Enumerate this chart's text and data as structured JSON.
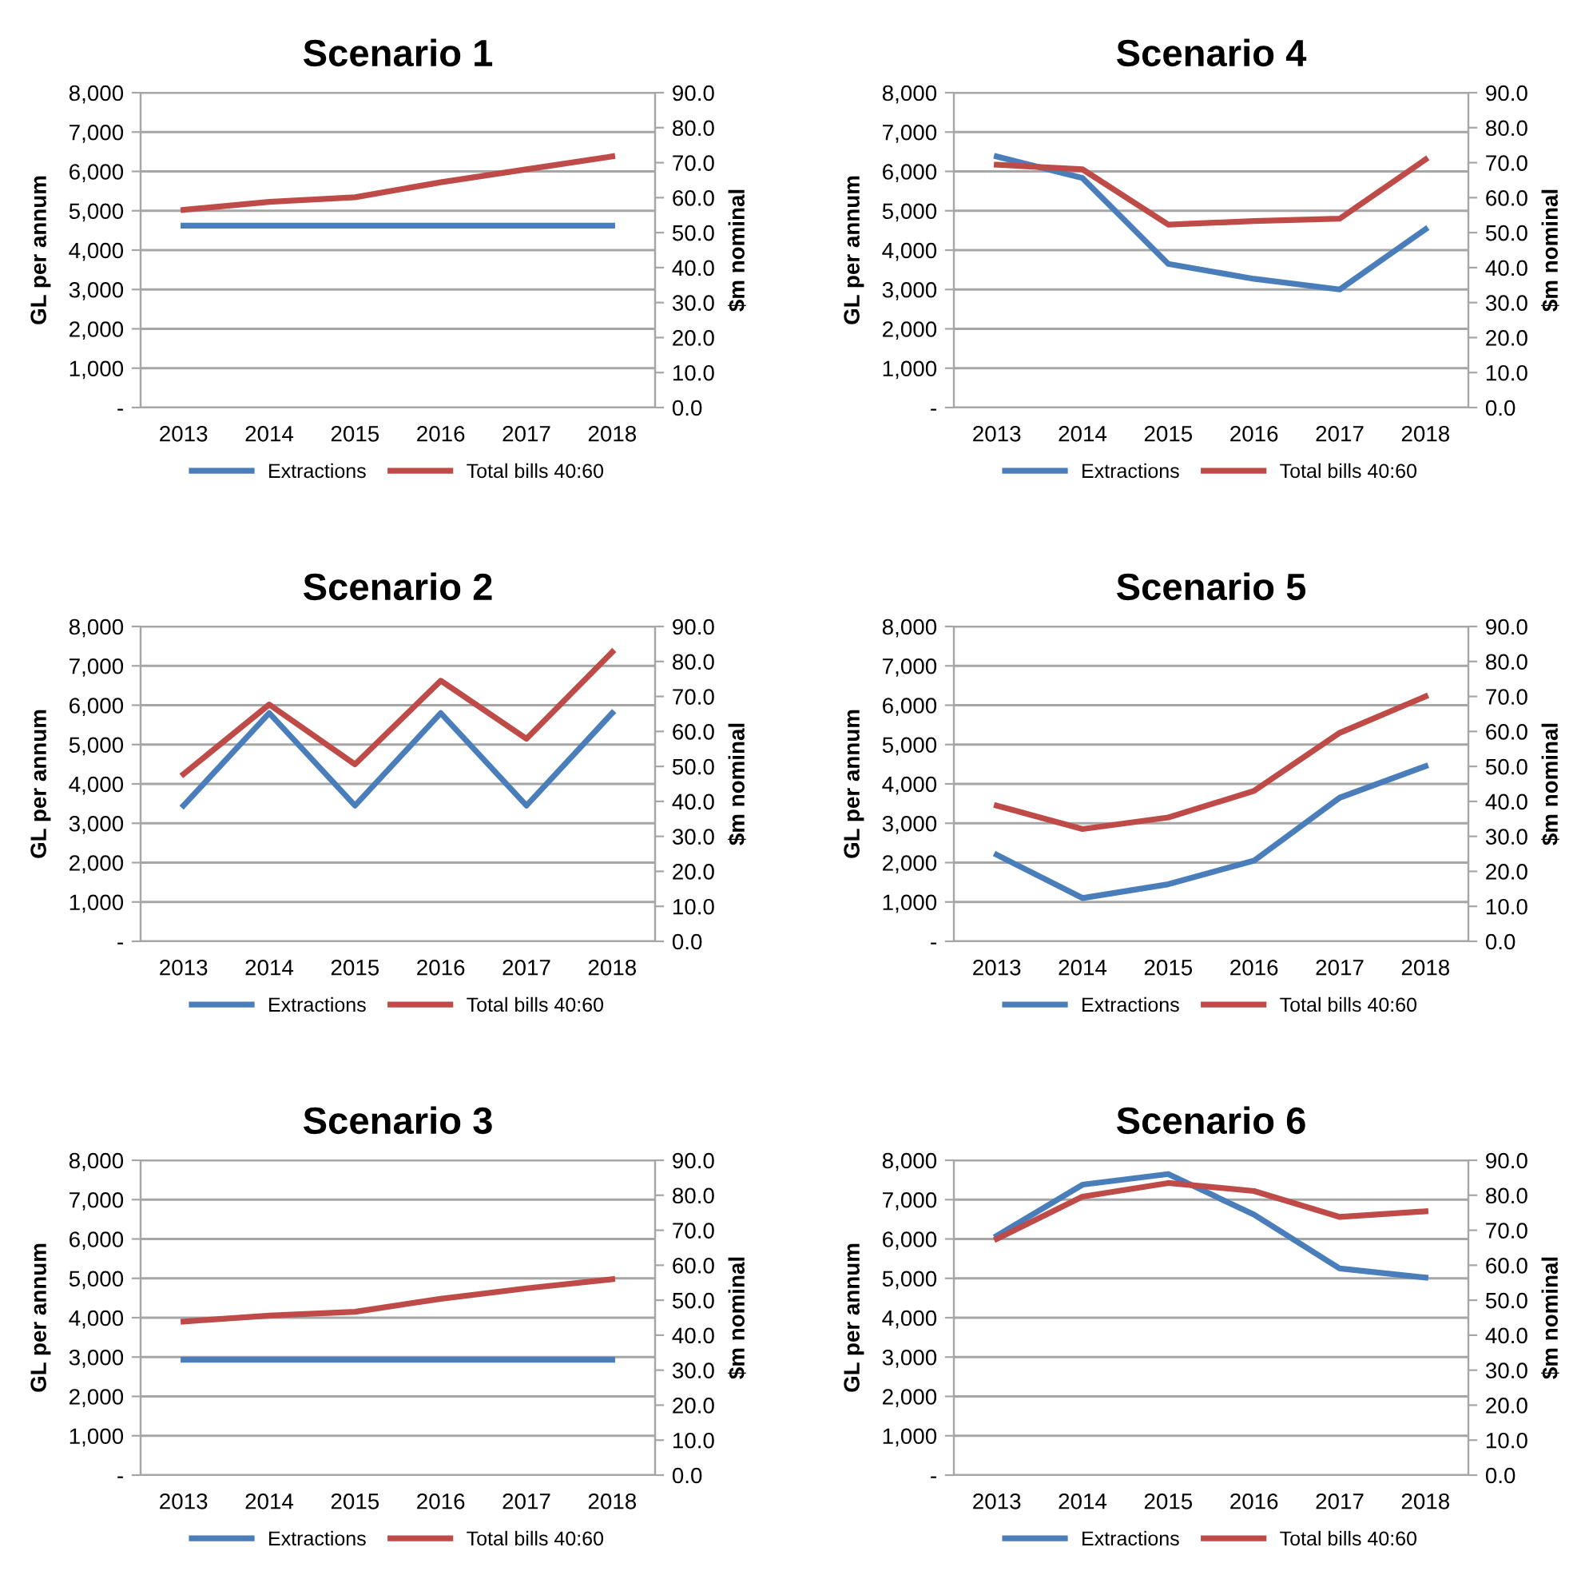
{
  "chart_data": [
    {
      "type": "line",
      "title": "Scenario 1",
      "ylabel": "GL per annum",
      "y2label": "$m nominal",
      "categories": [
        "2013",
        "2014",
        "2015",
        "2016",
        "2017",
        "2018"
      ],
      "series": [
        {
          "name": "Extractions",
          "color": "#4a7ebb",
          "values": [
            4620,
            4620,
            4620,
            4620,
            4620,
            4620
          ]
        },
        {
          "name": "Total bills 40:60",
          "color": "#be4b48",
          "axis": "y2",
          "values": [
            56.5,
            58.8,
            60.1,
            64.4,
            68.1,
            71.8
          ]
        }
      ],
      "ylim": [
        0,
        8000
      ],
      "yticks": [
        {
          "value": 0,
          "label": "-"
        },
        {
          "value": 1000,
          "label": "1,000"
        },
        {
          "value": 2000,
          "label": "2,000"
        },
        {
          "value": 3000,
          "label": "3,000"
        },
        {
          "value": 4000,
          "label": "4,000"
        },
        {
          "value": 5000,
          "label": "5,000"
        },
        {
          "value": 6000,
          "label": "6,000"
        },
        {
          "value": 7000,
          "label": "7,000"
        },
        {
          "value": 8000,
          "label": "8,000"
        }
      ],
      "y2lim": [
        0,
        90
      ],
      "y2ticks": [
        {
          "value": 0,
          "label": "0.0"
        },
        {
          "value": 10,
          "label": "10.0"
        },
        {
          "value": 20,
          "label": "20.0"
        },
        {
          "value": 30,
          "label": "30.0"
        },
        {
          "value": 40,
          "label": "40.0"
        },
        {
          "value": 50,
          "label": "50.0"
        },
        {
          "value": 60,
          "label": "60.0"
        },
        {
          "value": 70,
          "label": "70.0"
        },
        {
          "value": 80,
          "label": "80.0"
        },
        {
          "value": 90,
          "label": "90.0"
        }
      ],
      "grid": "y",
      "legend": "bottom"
    },
    {
      "type": "line",
      "title": "Scenario 4",
      "ylabel": "GL per annum",
      "y2label": "$m nominal",
      "categories": [
        "2013",
        "2014",
        "2015",
        "2016",
        "2017",
        "2018"
      ],
      "series": [
        {
          "name": "Extractions",
          "color": "#4a7ebb",
          "values": [
            6380,
            5830,
            3650,
            3270,
            3000,
            4530
          ]
        },
        {
          "name": "Total bills 40:60",
          "color": "#be4b48",
          "axis": "y2",
          "values": [
            69.4,
            68.1,
            52.3,
            53.3,
            54.0,
            70.9
          ]
        }
      ],
      "ylim": [
        0,
        8000
      ],
      "yticks": [
        {
          "value": 0,
          "label": "-"
        },
        {
          "value": 1000,
          "label": "1,000"
        },
        {
          "value": 2000,
          "label": "2,000"
        },
        {
          "value": 3000,
          "label": "3,000"
        },
        {
          "value": 4000,
          "label": "4,000"
        },
        {
          "value": 5000,
          "label": "5,000"
        },
        {
          "value": 6000,
          "label": "6,000"
        },
        {
          "value": 7000,
          "label": "7,000"
        },
        {
          "value": 8000,
          "label": "8,000"
        }
      ],
      "y2lim": [
        0,
        90
      ],
      "y2ticks": [
        {
          "value": 0,
          "label": "0.0"
        },
        {
          "value": 10,
          "label": "10.0"
        },
        {
          "value": 20,
          "label": "20.0"
        },
        {
          "value": 30,
          "label": "30.0"
        },
        {
          "value": 40,
          "label": "40.0"
        },
        {
          "value": 50,
          "label": "50.0"
        },
        {
          "value": 60,
          "label": "60.0"
        },
        {
          "value": 70,
          "label": "70.0"
        },
        {
          "value": 80,
          "label": "80.0"
        },
        {
          "value": 90,
          "label": "90.0"
        }
      ],
      "grid": "y",
      "legend": "bottom"
    },
    {
      "type": "line",
      "title": "Scenario 2",
      "ylabel": "GL per annum",
      "y2label": "$m nominal",
      "categories": [
        "2013",
        "2014",
        "2015",
        "2016",
        "2017",
        "2018"
      ],
      "series": [
        {
          "name": "Extractions",
          "color": "#4a7ebb",
          "values": [
            3450,
            5800,
            3450,
            5800,
            3450,
            5800
          ]
        },
        {
          "name": "Total bills 40:60",
          "color": "#be4b48",
          "axis": "y2",
          "values": [
            47.8,
            67.7,
            50.6,
            74.5,
            57.9,
            82.7
          ]
        }
      ],
      "ylim": [
        0,
        8000
      ],
      "yticks": [
        {
          "value": 0,
          "label": "-"
        },
        {
          "value": 1000,
          "label": "1,000"
        },
        {
          "value": 2000,
          "label": "2,000"
        },
        {
          "value": 3000,
          "label": "3,000"
        },
        {
          "value": 4000,
          "label": "4,000"
        },
        {
          "value": 5000,
          "label": "5,000"
        },
        {
          "value": 6000,
          "label": "6,000"
        },
        {
          "value": 7000,
          "label": "7,000"
        },
        {
          "value": 8000,
          "label": "8,000"
        }
      ],
      "y2lim": [
        0,
        90
      ],
      "y2ticks": [
        {
          "value": 0,
          "label": "0.0"
        },
        {
          "value": 10,
          "label": "10.0"
        },
        {
          "value": 20,
          "label": "20.0"
        },
        {
          "value": 30,
          "label": "30.0"
        },
        {
          "value": 40,
          "label": "40.0"
        },
        {
          "value": 50,
          "label": "50.0"
        },
        {
          "value": 60,
          "label": "60.0"
        },
        {
          "value": 70,
          "label": "70.0"
        },
        {
          "value": 80,
          "label": "80.0"
        },
        {
          "value": 90,
          "label": "90.0"
        }
      ],
      "grid": "y",
      "legend": "bottom"
    },
    {
      "type": "line",
      "title": "Scenario 5",
      "ylabel": "GL per annum",
      "y2label": "$m nominal",
      "categories": [
        "2013",
        "2014",
        "2015",
        "2016",
        "2017",
        "2018"
      ],
      "series": [
        {
          "name": "Extractions",
          "color": "#4a7ebb",
          "values": [
            2200,
            1100,
            1450,
            2050,
            3650,
            4450
          ]
        },
        {
          "name": "Total bills 40:60",
          "color": "#be4b48",
          "axis": "y2",
          "values": [
            38.8,
            32.1,
            35.4,
            43.0,
            59.6,
            70.0
          ]
        }
      ],
      "ylim": [
        0,
        8000
      ],
      "yticks": [
        {
          "value": 0,
          "label": "-"
        },
        {
          "value": 1000,
          "label": "1,000"
        },
        {
          "value": 2000,
          "label": "2,000"
        },
        {
          "value": 3000,
          "label": "3,000"
        },
        {
          "value": 4000,
          "label": "4,000"
        },
        {
          "value": 5000,
          "label": "5,000"
        },
        {
          "value": 6000,
          "label": "6,000"
        },
        {
          "value": 7000,
          "label": "7,000"
        },
        {
          "value": 8000,
          "label": "8,000"
        }
      ],
      "y2lim": [
        0,
        90
      ],
      "y2ticks": [
        {
          "value": 0,
          "label": "0.0"
        },
        {
          "value": 10,
          "label": "10.0"
        },
        {
          "value": 20,
          "label": "20.0"
        },
        {
          "value": 30,
          "label": "30.0"
        },
        {
          "value": 40,
          "label": "40.0"
        },
        {
          "value": 50,
          "label": "50.0"
        },
        {
          "value": 60,
          "label": "60.0"
        },
        {
          "value": 70,
          "label": "70.0"
        },
        {
          "value": 80,
          "label": "80.0"
        },
        {
          "value": 90,
          "label": "90.0"
        }
      ],
      "grid": "y",
      "legend": "bottom"
    },
    {
      "type": "line",
      "title": "Scenario 3",
      "ylabel": "GL per annum",
      "y2label": "$m nominal",
      "categories": [
        "2013",
        "2014",
        "2015",
        "2016",
        "2017",
        "2018"
      ],
      "series": [
        {
          "name": "Extractions",
          "color": "#4a7ebb",
          "values": [
            2930,
            2930,
            2930,
            2930,
            2930,
            2930
          ]
        },
        {
          "name": "Total bills 40:60",
          "color": "#be4b48",
          "axis": "y2",
          "values": [
            43.9,
            45.6,
            46.7,
            50.4,
            53.4,
            56.0
          ]
        }
      ],
      "ylim": [
        0,
        8000
      ],
      "yticks": [
        {
          "value": 0,
          "label": "-"
        },
        {
          "value": 1000,
          "label": "1,000"
        },
        {
          "value": 2000,
          "label": "2,000"
        },
        {
          "value": 3000,
          "label": "3,000"
        },
        {
          "value": 4000,
          "label": "4,000"
        },
        {
          "value": 5000,
          "label": "5,000"
        },
        {
          "value": 6000,
          "label": "6,000"
        },
        {
          "value": 7000,
          "label": "7,000"
        },
        {
          "value": 8000,
          "label": "8,000"
        }
      ],
      "y2lim": [
        0,
        90
      ],
      "y2ticks": [
        {
          "value": 0,
          "label": "0.0"
        },
        {
          "value": 10,
          "label": "10.0"
        },
        {
          "value": 20,
          "label": "20.0"
        },
        {
          "value": 30,
          "label": "30.0"
        },
        {
          "value": 40,
          "label": "40.0"
        },
        {
          "value": 50,
          "label": "50.0"
        },
        {
          "value": 60,
          "label": "60.0"
        },
        {
          "value": 70,
          "label": "70.0"
        },
        {
          "value": 80,
          "label": "80.0"
        },
        {
          "value": 90,
          "label": "90.0"
        }
      ],
      "grid": "y",
      "legend": "bottom"
    },
    {
      "type": "line",
      "title": "Scenario 6",
      "ylabel": "GL per annum",
      "y2label": "$m nominal",
      "categories": [
        "2013",
        "2014",
        "2015",
        "2016",
        "2017",
        "2018"
      ],
      "series": [
        {
          "name": "Extractions",
          "color": "#4a7ebb",
          "values": [
            6080,
            7380,
            7650,
            6620,
            5250,
            5020
          ]
        },
        {
          "name": "Total bills 40:60",
          "color": "#be4b48",
          "axis": "y2",
          "values": [
            67.5,
            79.6,
            83.5,
            81.2,
            73.8,
            75.4
          ]
        }
      ],
      "ylim": [
        0,
        8000
      ],
      "yticks": [
        {
          "value": 0,
          "label": "-"
        },
        {
          "value": 1000,
          "label": "1,000"
        },
        {
          "value": 2000,
          "label": "2,000"
        },
        {
          "value": 3000,
          "label": "3,000"
        },
        {
          "value": 4000,
          "label": "4,000"
        },
        {
          "value": 5000,
          "label": "5,000"
        },
        {
          "value": 6000,
          "label": "6,000"
        },
        {
          "value": 7000,
          "label": "7,000"
        },
        {
          "value": 8000,
          "label": "8,000"
        }
      ],
      "y2lim": [
        0,
        90
      ],
      "y2ticks": [
        {
          "value": 0,
          "label": "0.0"
        },
        {
          "value": 10,
          "label": "10.0"
        },
        {
          "value": 20,
          "label": "20.0"
        },
        {
          "value": 30,
          "label": "30.0"
        },
        {
          "value": 40,
          "label": "40.0"
        },
        {
          "value": 50,
          "label": "50.0"
        },
        {
          "value": 60,
          "label": "60.0"
        },
        {
          "value": 70,
          "label": "70.0"
        },
        {
          "value": 80,
          "label": "80.0"
        },
        {
          "value": 90,
          "label": "90.0"
        }
      ],
      "grid": "y",
      "legend": "bottom"
    }
  ]
}
